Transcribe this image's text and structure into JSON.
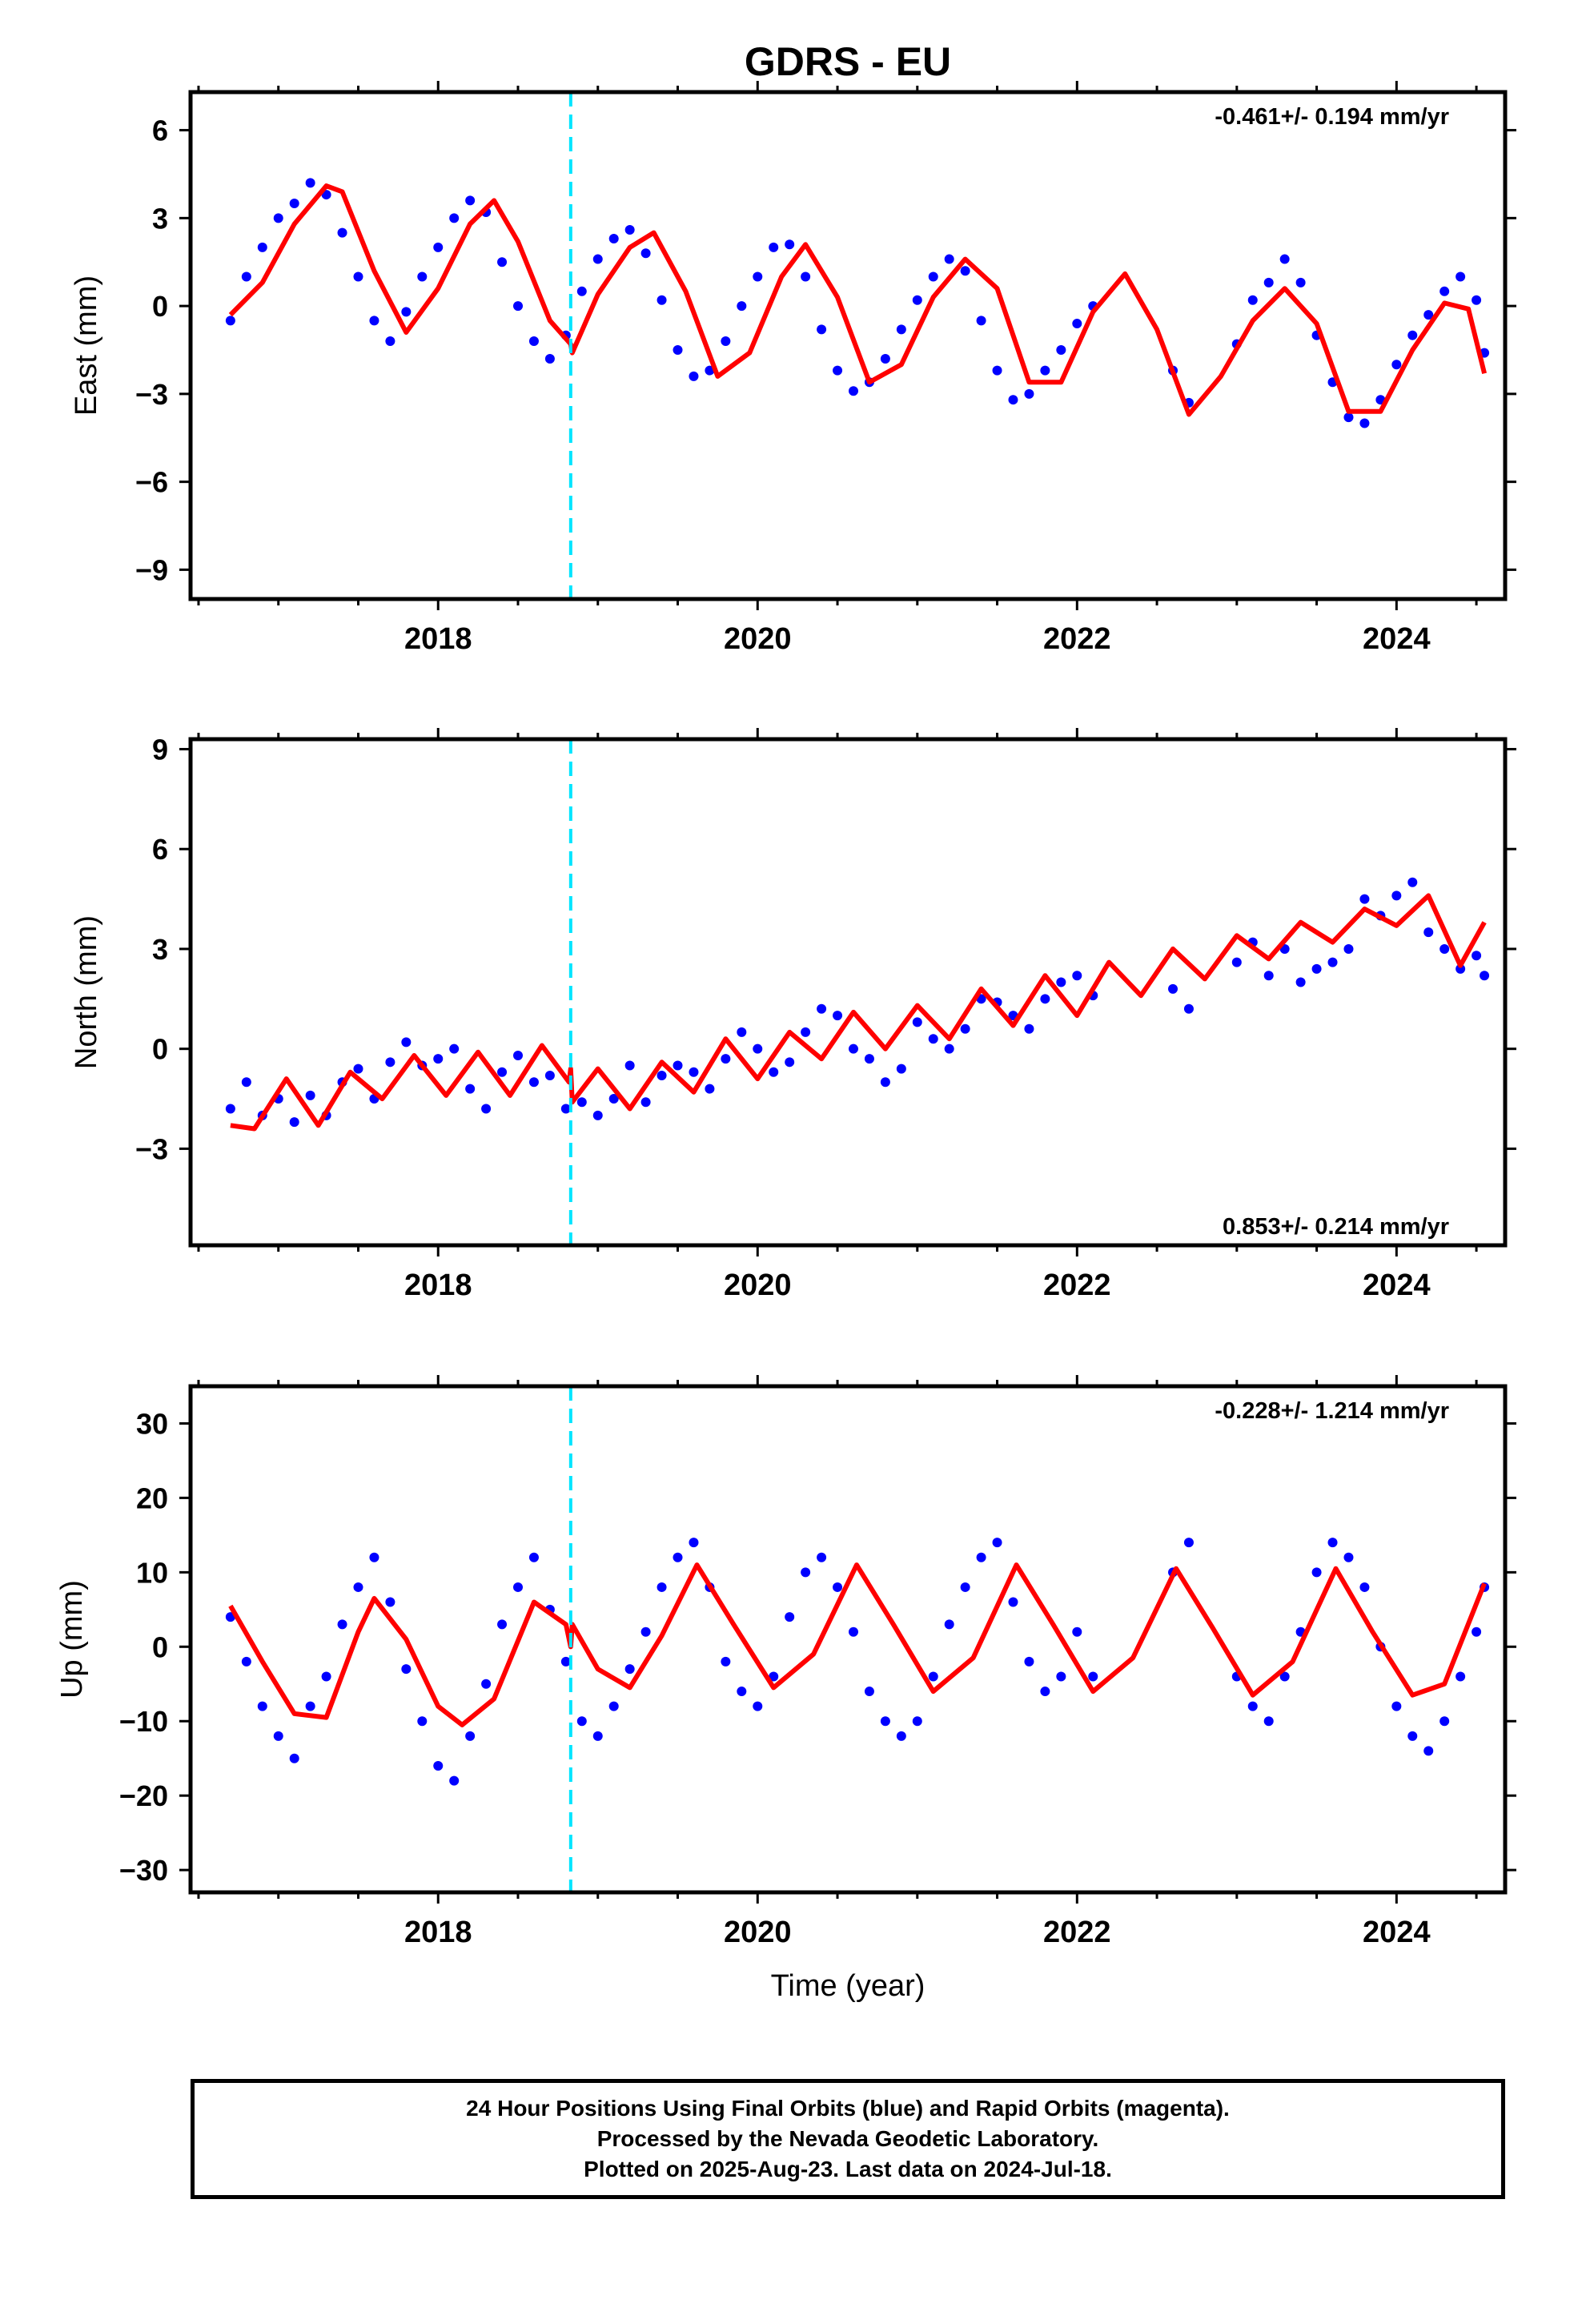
{
  "figure": {
    "title": "GDRS - EU",
    "xlabel": "Time (year)",
    "colors": {
      "data": "#0000ff",
      "model": "#ff0000",
      "break": "#00e5ff",
      "frame": "#000000"
    },
    "break_year": 2018.83
  },
  "footer": {
    "lines": [
      "24 Hour Positions Using Final Orbits (blue) and Rapid Orbits (magenta).",
      "Processed by the Nevada Geodetic Laboratory.",
      "Plotted on 2025-Aug-23. Last data on 2024-Jul-18."
    ]
  },
  "chart_data": [
    {
      "type": "scatter",
      "ylabel": "East (mm)",
      "rate_label": "-0.461+/- 0.194 mm/yr",
      "rate_label_position": "top-right",
      "xlim": [
        2016.45,
        2024.68
      ],
      "ylim": [
        -10,
        7.3
      ],
      "xticks": [
        2018,
        2020,
        2022,
        2024
      ],
      "yticks": [
        -9,
        -6,
        -3,
        0,
        3,
        6
      ],
      "grid": false,
      "series": [
        {
          "kind": "points",
          "x": [
            2016.7,
            2016.8,
            2016.9,
            2017.0,
            2017.1,
            2017.2,
            2017.3,
            2017.4,
            2017.5,
            2017.6,
            2017.7,
            2017.8,
            2017.9,
            2018.0,
            2018.1,
            2018.2,
            2018.3,
            2018.4,
            2018.5,
            2018.6,
            2018.7,
            2018.8,
            2018.9,
            2019.0,
            2019.1,
            2019.2,
            2019.3,
            2019.4,
            2019.5,
            2019.6,
            2019.7,
            2019.8,
            2019.9,
            2020.0,
            2020.1,
            2020.2,
            2020.3,
            2020.4,
            2020.5,
            2020.6,
            2020.7,
            2020.8,
            2020.9,
            2021.0,
            2021.1,
            2021.2,
            2021.3,
            2021.4,
            2021.5,
            2021.6,
            2021.7,
            2021.8,
            2021.9,
            2022.0,
            2022.1,
            2022.6,
            2022.7,
            2023.0,
            2023.1,
            2023.2,
            2023.3,
            2023.4,
            2023.5,
            2023.6,
            2023.7,
            2023.8,
            2023.9,
            2024.0,
            2024.1,
            2024.2,
            2024.3,
            2024.4,
            2024.5,
            2024.55
          ],
          "y": [
            -0.5,
            1.0,
            2.0,
            3.0,
            3.5,
            4.2,
            3.8,
            2.5,
            1.0,
            -0.5,
            -1.2,
            -0.2,
            1.0,
            2.0,
            3.0,
            3.6,
            3.2,
            1.5,
            0.0,
            -1.2,
            -1.8,
            -1.0,
            0.5,
            1.6,
            2.3,
            2.6,
            1.8,
            0.2,
            -1.5,
            -2.4,
            -2.2,
            -1.2,
            0.0,
            1.0,
            2.0,
            2.1,
            1.0,
            -0.8,
            -2.2,
            -2.9,
            -2.6,
            -1.8,
            -0.8,
            0.2,
            1.0,
            1.6,
            1.2,
            -0.5,
            -2.2,
            -3.2,
            -3.0,
            -2.2,
            -1.5,
            -0.6,
            0.0,
            -2.2,
            -3.3,
            -1.3,
            0.2,
            0.8,
            1.6,
            0.8,
            -1.0,
            -2.6,
            -3.8,
            -4.0,
            -3.2,
            -2.0,
            -1.0,
            -0.3,
            0.5,
            1.0,
            0.2,
            -1.6
          ]
        },
        {
          "kind": "model",
          "x": [
            2016.7,
            2016.9,
            2017.1,
            2017.3,
            2017.4,
            2017.6,
            2017.8,
            2018.0,
            2018.2,
            2018.35,
            2018.5,
            2018.7,
            2018.83,
            2018.84,
            2019.0,
            2019.2,
            2019.35,
            2019.55,
            2019.75,
            2019.95,
            2020.15,
            2020.3,
            2020.5,
            2020.7,
            2020.9,
            2021.1,
            2021.3,
            2021.5,
            2021.7,
            2021.9,
            2022.1,
            2022.3,
            2022.5,
            2022.7,
            2022.9,
            2023.1,
            2023.3,
            2023.5,
            2023.7,
            2023.9,
            2024.1,
            2024.3,
            2024.45,
            2024.55
          ],
          "y": [
            -0.3,
            0.8,
            2.8,
            4.1,
            3.9,
            1.2,
            -0.9,
            0.6,
            2.8,
            3.6,
            2.2,
            -0.5,
            -1.3,
            -1.6,
            0.4,
            2.0,
            2.5,
            0.5,
            -2.4,
            -1.6,
            1.0,
            2.1,
            0.3,
            -2.6,
            -2.0,
            0.3,
            1.6,
            0.6,
            -2.6,
            -2.6,
            -0.2,
            1.1,
            -0.8,
            -3.7,
            -2.4,
            -0.5,
            0.6,
            -0.6,
            -3.6,
            -3.6,
            -1.5,
            0.1,
            -0.1,
            -2.3
          ]
        }
      ]
    },
    {
      "type": "scatter",
      "ylabel": "North (mm)",
      "rate_label": "0.853+/- 0.214 mm/yr",
      "rate_label_position": "bottom-right",
      "xlim": [
        2016.45,
        2024.68
      ],
      "ylim": [
        -5.9,
        9.3
      ],
      "xticks": [
        2018,
        2020,
        2022,
        2024
      ],
      "yticks": [
        -3,
        0,
        3,
        6,
        9
      ],
      "grid": false,
      "series": [
        {
          "kind": "points",
          "x": [
            2016.7,
            2016.8,
            2016.9,
            2017.0,
            2017.1,
            2017.2,
            2017.3,
            2017.4,
            2017.5,
            2017.6,
            2017.7,
            2017.8,
            2017.9,
            2018.0,
            2018.1,
            2018.2,
            2018.3,
            2018.4,
            2018.5,
            2018.6,
            2018.7,
            2018.8,
            2018.9,
            2019.0,
            2019.1,
            2019.2,
            2019.3,
            2019.4,
            2019.5,
            2019.6,
            2019.7,
            2019.8,
            2019.9,
            2020.0,
            2020.1,
            2020.2,
            2020.3,
            2020.4,
            2020.5,
            2020.6,
            2020.7,
            2020.8,
            2020.9,
            2021.0,
            2021.1,
            2021.2,
            2021.3,
            2021.4,
            2021.5,
            2021.6,
            2021.7,
            2021.8,
            2021.9,
            2022.0,
            2022.1,
            2022.6,
            2022.7,
            2023.0,
            2023.1,
            2023.2,
            2023.3,
            2023.4,
            2023.5,
            2023.6,
            2023.7,
            2023.8,
            2023.9,
            2024.0,
            2024.1,
            2024.2,
            2024.3,
            2024.4,
            2024.5,
            2024.55
          ],
          "y": [
            -1.8,
            -1.0,
            -2.0,
            -1.5,
            -2.2,
            -1.4,
            -2.0,
            -1.0,
            -0.6,
            -1.5,
            -0.4,
            0.2,
            -0.5,
            -0.3,
            0.0,
            -1.2,
            -1.8,
            -0.7,
            -0.2,
            -1.0,
            -0.8,
            -1.8,
            -1.6,
            -2.0,
            -1.5,
            -0.5,
            -1.6,
            -0.8,
            -0.5,
            -0.7,
            -1.2,
            -0.3,
            0.5,
            0.0,
            -0.7,
            -0.4,
            0.5,
            1.2,
            1.0,
            0.0,
            -0.3,
            -1.0,
            -0.6,
            0.8,
            0.3,
            0.0,
            0.6,
            1.5,
            1.4,
            1.0,
            0.6,
            1.5,
            2.0,
            2.2,
            1.6,
            1.8,
            1.2,
            2.6,
            3.2,
            2.2,
            3.0,
            2.0,
            2.4,
            2.6,
            3.0,
            4.5,
            4.0,
            4.6,
            5.0,
            3.5,
            3.0,
            2.4,
            2.8,
            2.2
          ]
        },
        {
          "kind": "model",
          "x": [
            2016.7,
            2016.85,
            2017.05,
            2017.25,
            2017.45,
            2017.65,
            2017.85,
            2018.05,
            2018.25,
            2018.45,
            2018.65,
            2018.82,
            2018.83,
            2018.84,
            2019.0,
            2019.2,
            2019.4,
            2019.6,
            2019.8,
            2020.0,
            2020.2,
            2020.4,
            2020.6,
            2020.8,
            2021.0,
            2021.2,
            2021.4,
            2021.6,
            2021.8,
            2022.0,
            2022.2,
            2022.4,
            2022.6,
            2022.8,
            2023.0,
            2023.2,
            2023.4,
            2023.6,
            2023.8,
            2024.0,
            2024.2,
            2024.4,
            2024.55
          ],
          "y": [
            -2.3,
            -2.4,
            -0.9,
            -2.3,
            -0.7,
            -1.5,
            -0.2,
            -1.4,
            -0.1,
            -1.4,
            0.1,
            -1.0,
            -0.6,
            -1.6,
            -0.6,
            -1.8,
            -0.4,
            -1.3,
            0.3,
            -0.9,
            0.5,
            -0.3,
            1.1,
            0.0,
            1.3,
            0.3,
            1.8,
            0.7,
            2.2,
            1.0,
            2.6,
            1.6,
            3.0,
            2.1,
            3.4,
            2.7,
            3.8,
            3.2,
            4.2,
            3.7,
            4.6,
            2.5,
            3.8
          ]
        }
      ]
    },
    {
      "type": "scatter",
      "ylabel": "Up (mm)",
      "xlabel": "Time (year)",
      "rate_label": "-0.228+/- 1.214 mm/yr",
      "rate_label_position": "top-right",
      "xlim": [
        2016.45,
        2024.68
      ],
      "ylim": [
        -33,
        35
      ],
      "xticks": [
        2018,
        2020,
        2022,
        2024
      ],
      "yticks": [
        -30,
        -20,
        -10,
        0,
        10,
        20,
        30
      ],
      "grid": false,
      "series": [
        {
          "kind": "points",
          "x": [
            2016.7,
            2016.8,
            2016.9,
            2017.0,
            2017.1,
            2017.2,
            2017.3,
            2017.4,
            2017.5,
            2017.6,
            2017.7,
            2017.8,
            2017.9,
            2018.0,
            2018.1,
            2018.2,
            2018.3,
            2018.4,
            2018.5,
            2018.6,
            2018.7,
            2018.8,
            2018.9,
            2019.0,
            2019.1,
            2019.2,
            2019.3,
            2019.4,
            2019.5,
            2019.6,
            2019.7,
            2019.8,
            2019.9,
            2020.0,
            2020.1,
            2020.2,
            2020.3,
            2020.4,
            2020.5,
            2020.6,
            2020.7,
            2020.8,
            2020.9,
            2021.0,
            2021.1,
            2021.2,
            2021.3,
            2021.4,
            2021.5,
            2021.6,
            2021.7,
            2021.8,
            2021.9,
            2022.0,
            2022.1,
            2022.6,
            2022.7,
            2023.0,
            2023.1,
            2023.2,
            2023.3,
            2023.4,
            2023.5,
            2023.6,
            2023.7,
            2023.8,
            2023.9,
            2024.0,
            2024.1,
            2024.2,
            2024.3,
            2024.4,
            2024.5,
            2024.55
          ],
          "y": [
            4.0,
            -2.0,
            -8.0,
            -12.0,
            -15.0,
            -8.0,
            -4.0,
            3.0,
            8.0,
            12.0,
            6.0,
            -3.0,
            -10.0,
            -16.0,
            -18.0,
            -12.0,
            -5.0,
            3.0,
            8.0,
            12.0,
            5.0,
            -2.0,
            -10.0,
            -12.0,
            -8.0,
            -3.0,
            2.0,
            8.0,
            12.0,
            14.0,
            8.0,
            -2.0,
            -6.0,
            -8.0,
            -4.0,
            4.0,
            10.0,
            12.0,
            8.0,
            2.0,
            -6.0,
            -10.0,
            -12.0,
            -10.0,
            -4.0,
            3.0,
            8.0,
            12.0,
            14.0,
            6.0,
            -2.0,
            -6.0,
            -4.0,
            2.0,
            -4.0,
            10.0,
            14.0,
            -4.0,
            -8.0,
            -10.0,
            -4.0,
            2.0,
            10.0,
            14.0,
            12.0,
            8.0,
            0.0,
            -8.0,
            -12.0,
            -14.0,
            -10.0,
            -4.0,
            2.0,
            8.0
          ]
        },
        {
          "kind": "model",
          "x": [
            2016.7,
            2016.9,
            2017.1,
            2017.3,
            2017.5,
            2017.6,
            2017.8,
            2018.0,
            2018.15,
            2018.35,
            2018.6,
            2018.8,
            2018.83,
            2018.84,
            2019.0,
            2019.2,
            2019.4,
            2019.62,
            2019.85,
            2020.1,
            2020.35,
            2020.62,
            2020.85,
            2021.1,
            2021.35,
            2021.62,
            2021.85,
            2022.1,
            2022.35,
            2022.62,
            2022.85,
            2023.1,
            2023.35,
            2023.62,
            2023.85,
            2024.1,
            2024.3,
            2024.55
          ],
          "y": [
            5.5,
            -2.0,
            -9.0,
            -9.5,
            2.0,
            6.5,
            1.0,
            -8.0,
            -10.5,
            -7.0,
            6.0,
            3.0,
            0.0,
            3.0,
            -3.0,
            -5.5,
            1.5,
            11.0,
            3.0,
            -5.5,
            -1.0,
            11.0,
            3.0,
            -6.0,
            -1.5,
            11.0,
            3.0,
            -6.0,
            -1.5,
            10.5,
            2.5,
            -6.5,
            -2.0,
            10.5,
            2.0,
            -6.5,
            -5.0,
            8.5
          ]
        }
      ]
    }
  ]
}
